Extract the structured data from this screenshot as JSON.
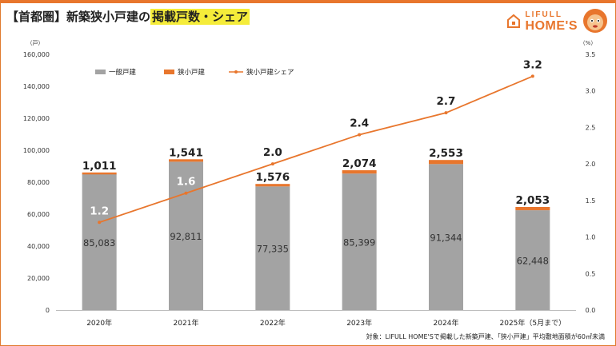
{
  "header": {
    "title_prefix": "【首都圏】新築狭小戸建の",
    "title_highlight": "掲載戸数・シェア"
  },
  "logo": {
    "line1": "LIFULL",
    "line2": "HOME'S"
  },
  "footnote": "対象：LIFULL HOME'Sで掲載した新築戸建、「狭小戸建」平均敷地面積が60㎡未満",
  "colors": {
    "gray_bar": "#a3a3a3",
    "orange": "#e8762d",
    "title_highlight": "#f5ec3a"
  },
  "chart_data": {
    "type": "bar",
    "categories": [
      "2020年",
      "2021年",
      "2022年",
      "2023年",
      "2024年",
      "2025年（5月まで）"
    ],
    "series": [
      {
        "name": "一般戸建",
        "type": "bar",
        "stack": "units",
        "axis": "left",
        "values": [
          85083,
          92811,
          77335,
          85399,
          91344,
          62448
        ]
      },
      {
        "name": "狭小戸建",
        "type": "bar",
        "stack": "units",
        "axis": "left",
        "values": [
          1011,
          1541,
          1576,
          2074,
          2553,
          2053
        ]
      },
      {
        "name": "狭小戸建シェア",
        "type": "line",
        "axis": "right",
        "values": [
          1.2,
          1.6,
          2.0,
          2.4,
          2.7,
          3.2
        ]
      }
    ],
    "bar_labels": [
      "85,083",
      "92,811",
      "77,335",
      "85,399",
      "91,344",
      "62,448"
    ],
    "narrow_labels": [
      "1,011",
      "1,541",
      "1,576",
      "2,074",
      "2,553",
      "2,053"
    ],
    "share_labels": [
      "1.2",
      "1.6",
      "2.0",
      "2.4",
      "2.7",
      "3.2"
    ],
    "ylabel_left": "（戸）",
    "ylabel_right": "（%）",
    "ylim_left": [
      0,
      160000
    ],
    "yticks_left": [
      "0",
      "20,000",
      "40,000",
      "60,000",
      "80,000",
      "100,000",
      "120,000",
      "140,000",
      "160,000"
    ],
    "ylim_right": [
      0,
      3.5
    ],
    "yticks_right": [
      "0.0",
      "0.5",
      "1.0",
      "1.5",
      "2.0",
      "2.5",
      "3.0",
      "3.5"
    ],
    "grid": false,
    "legend_position": "top-left"
  }
}
